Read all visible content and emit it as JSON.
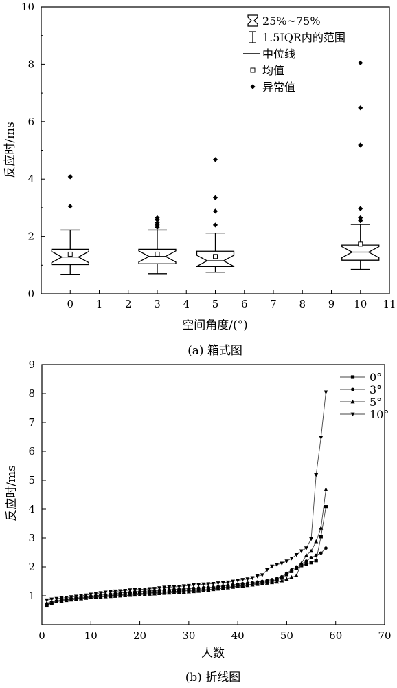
{
  "chart_data": [
    {
      "type": "box",
      "caption": "(a) 箱式图",
      "xlabel": "空间角度/(°)",
      "ylabel": "反应时/ms",
      "xlim": [
        -1,
        11
      ],
      "ylim": [
        0,
        10
      ],
      "xticks": [
        0,
        1,
        2,
        3,
        4,
        5,
        6,
        7,
        8,
        9,
        10,
        11
      ],
      "yticks": [
        0,
        2,
        4,
        6,
        8,
        10
      ],
      "legend": {
        "position": "top-right",
        "items": [
          {
            "symbol": "notched-box",
            "label": "25%~75%"
          },
          {
            "symbol": "whisker",
            "label": "1.5IQR内的范围"
          },
          {
            "symbol": "line",
            "label": "中位线"
          },
          {
            "symbol": "open-square",
            "label": "均值"
          },
          {
            "symbol": "diamond",
            "label": "异常值"
          }
        ]
      },
      "boxes": [
        {
          "x": 0,
          "whisker_low": 0.68,
          "q1": 1.02,
          "median": 1.28,
          "q3": 1.55,
          "whisker_high": 2.22,
          "mean": 1.38,
          "outliers": [
            3.05,
            4.08
          ]
        },
        {
          "x": 3,
          "whisker_low": 0.7,
          "q1": 1.05,
          "median": 1.3,
          "q3": 1.55,
          "whisker_high": 2.22,
          "mean": 1.38,
          "outliers": [
            2.32,
            2.4,
            2.48,
            2.58,
            2.65
          ]
        },
        {
          "x": 5,
          "whisker_low": 0.75,
          "q1": 0.95,
          "median": 1.15,
          "q3": 1.48,
          "whisker_high": 2.12,
          "mean": 1.3,
          "outliers": [
            2.4,
            2.88,
            3.35,
            4.68
          ]
        },
        {
          "x": 10,
          "whisker_low": 0.85,
          "q1": 1.17,
          "median": 1.45,
          "q3": 1.7,
          "whisker_high": 2.42,
          "mean": 1.73,
          "outliers": [
            2.55,
            2.65,
            2.97,
            5.18,
            6.48,
            8.05
          ]
        }
      ]
    },
    {
      "type": "line",
      "caption": "(b) 折线图",
      "xlabel": "人数",
      "ylabel": "反应时/ms",
      "xlim": [
        0,
        70
      ],
      "ylim": [
        0,
        9
      ],
      "xticks": [
        0,
        10,
        20,
        30,
        40,
        50,
        60,
        70
      ],
      "yticks": [
        1,
        2,
        3,
        4,
        5,
        6,
        7,
        8,
        9
      ],
      "legend": {
        "position": "top-right"
      },
      "x": [
        1,
        2,
        3,
        4,
        5,
        6,
        7,
        8,
        9,
        10,
        11,
        12,
        13,
        14,
        15,
        16,
        17,
        18,
        19,
        20,
        21,
        22,
        23,
        24,
        25,
        26,
        27,
        28,
        29,
        30,
        31,
        32,
        33,
        34,
        35,
        36,
        37,
        38,
        39,
        40,
        41,
        42,
        43,
        44,
        45,
        46,
        47,
        48,
        49,
        50,
        51,
        52,
        53,
        54,
        55,
        56,
        57,
        58
      ],
      "series": [
        {
          "name": "0°",
          "marker": "square",
          "values": [
            0.68,
            0.75,
            0.8,
            0.84,
            0.86,
            0.88,
            0.9,
            0.92,
            0.93,
            0.95,
            0.96,
            0.98,
            1.0,
            1.01,
            1.02,
            1.03,
            1.05,
            1.06,
            1.07,
            1.08,
            1.09,
            1.1,
            1.11,
            1.12,
            1.13,
            1.14,
            1.15,
            1.16,
            1.17,
            1.18,
            1.19,
            1.2,
            1.21,
            1.22,
            1.24,
            1.26,
            1.28,
            1.3,
            1.32,
            1.34,
            1.36,
            1.38,
            1.4,
            1.43,
            1.46,
            1.49,
            1.52,
            1.56,
            1.62,
            1.74,
            1.85,
            1.95,
            2.05,
            2.1,
            2.15,
            2.22,
            3.05,
            4.08
          ]
        },
        {
          "name": "3°",
          "marker": "circle",
          "values": [
            0.7,
            0.76,
            0.82,
            0.86,
            0.88,
            0.9,
            0.92,
            0.94,
            0.96,
            0.98,
            1.0,
            1.02,
            1.04,
            1.06,
            1.08,
            1.1,
            1.11,
            1.12,
            1.14,
            1.15,
            1.16,
            1.17,
            1.18,
            1.19,
            1.2,
            1.21,
            1.22,
            1.23,
            1.24,
            1.25,
            1.26,
            1.27,
            1.28,
            1.29,
            1.3,
            1.32,
            1.34,
            1.36,
            1.38,
            1.4,
            1.42,
            1.44,
            1.46,
            1.48,
            1.5,
            1.53,
            1.56,
            1.6,
            1.66,
            1.78,
            1.9,
            2.0,
            2.1,
            2.2,
            2.32,
            2.4,
            2.48,
            2.65
          ]
        },
        {
          "name": "5°",
          "marker": "triangle-up",
          "values": [
            0.75,
            0.78,
            0.8,
            0.82,
            0.84,
            0.86,
            0.88,
            0.9,
            0.92,
            0.94,
            0.95,
            0.96,
            0.97,
            0.98,
            0.99,
            1.0,
            1.01,
            1.02,
            1.03,
            1.04,
            1.05,
            1.06,
            1.07,
            1.08,
            1.09,
            1.1,
            1.11,
            1.12,
            1.13,
            1.14,
            1.15,
            1.16,
            1.18,
            1.2,
            1.22,
            1.24,
            1.26,
            1.28,
            1.3,
            1.32,
            1.34,
            1.36,
            1.38,
            1.4,
            1.42,
            1.44,
            1.46,
            1.48,
            1.52,
            1.58,
            1.64,
            1.7,
            2.12,
            2.4,
            2.55,
            2.88,
            3.35,
            4.68
          ]
        },
        {
          "name": "10°",
          "marker": "triangle-down",
          "values": [
            0.85,
            0.88,
            0.9,
            0.92,
            0.94,
            0.96,
            0.98,
            1.0,
            1.02,
            1.05,
            1.08,
            1.1,
            1.12,
            1.14,
            1.16,
            1.17,
            1.18,
            1.2,
            1.21,
            1.22,
            1.23,
            1.24,
            1.25,
            1.27,
            1.29,
            1.3,
            1.31,
            1.32,
            1.34,
            1.35,
            1.37,
            1.38,
            1.4,
            1.41,
            1.42,
            1.44,
            1.45,
            1.47,
            1.5,
            1.53,
            1.56,
            1.58,
            1.62,
            1.68,
            1.72,
            1.9,
            2.02,
            2.08,
            2.12,
            2.2,
            2.3,
            2.42,
            2.55,
            2.65,
            2.97,
            5.18,
            6.48,
            8.05
          ]
        }
      ]
    }
  ]
}
